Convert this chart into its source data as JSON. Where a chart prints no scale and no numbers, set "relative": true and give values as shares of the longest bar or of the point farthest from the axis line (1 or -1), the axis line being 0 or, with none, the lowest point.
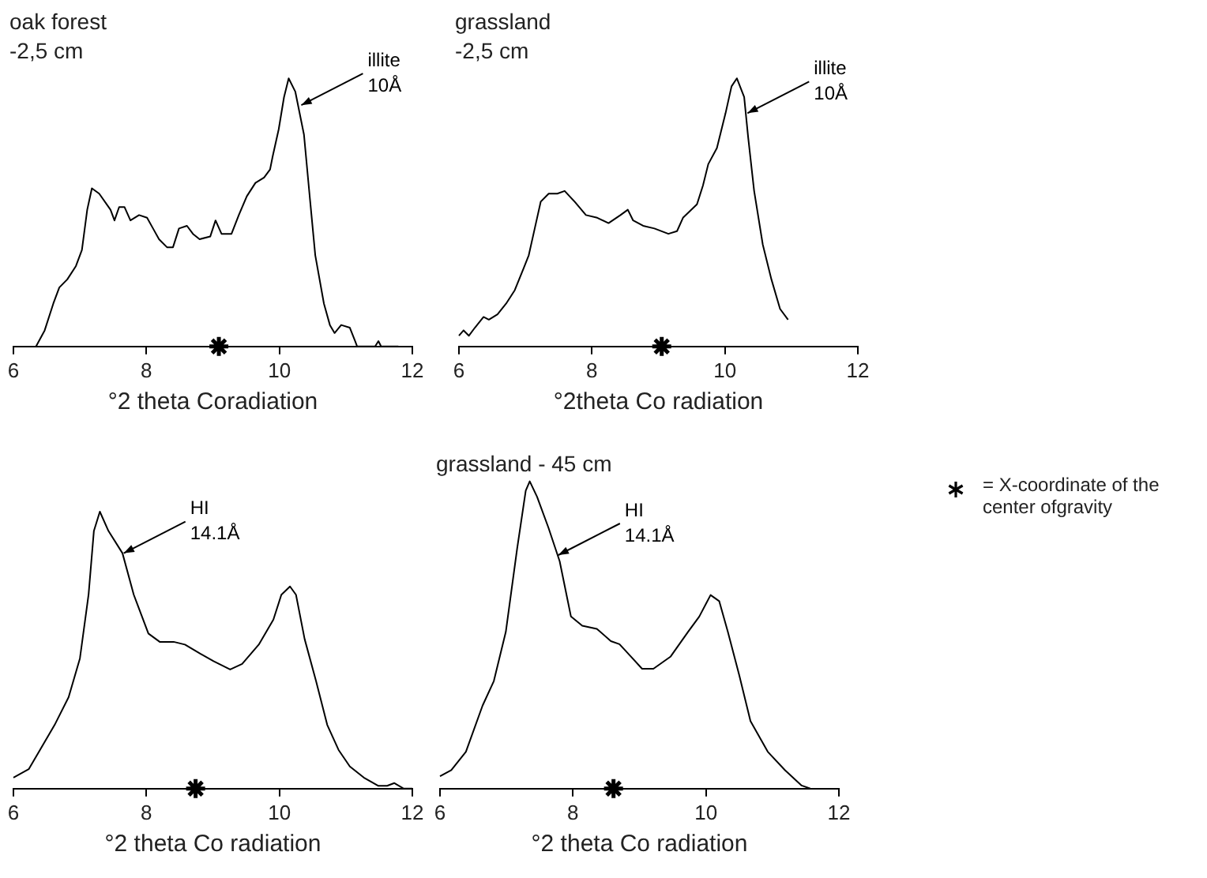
{
  "chart_data": [
    {
      "type": "line",
      "relative": true,
      "title": "oak forest",
      "subtitle": "-2,5 cm",
      "xlabel": "°2 theta Coradiation",
      "xlim": [
        6,
        12
      ],
      "xticks": [
        6,
        8,
        10,
        12
      ],
      "tick_labels": "x",
      "series": [
        {
          "color": "#000000",
          "x": [
            6.34,
            6.47,
            6.6,
            6.69,
            6.81,
            6.94,
            7.03,
            7.11,
            7.18,
            7.29,
            7.46,
            7.52,
            7.59,
            7.67,
            7.76,
            7.89,
            8.01,
            8.1,
            8.19,
            8.31,
            8.4,
            8.49,
            8.61,
            8.7,
            8.8,
            8.96,
            9.04,
            9.13,
            9.28,
            9.39,
            9.51,
            9.64,
            9.77,
            9.86,
            9.9,
            9.99,
            10.07,
            10.14,
            10.24,
            10.37,
            10.46,
            10.54,
            10.67,
            10.76,
            10.83,
            10.93,
            11.06,
            11.14,
            11.17,
            11.44,
            11.49,
            11.53,
            11.79
          ],
          "values": [
            0,
            0.06,
            0.16,
            0.22,
            0.25,
            0.3,
            0.36,
            0.51,
            0.59,
            0.57,
            0.51,
            0.47,
            0.52,
            0.52,
            0.47,
            0.49,
            0.48,
            0.44,
            0.4,
            0.37,
            0.37,
            0.44,
            0.45,
            0.42,
            0.4,
            0.41,
            0.47,
            0.42,
            0.42,
            0.49,
            0.56,
            0.61,
            0.63,
            0.66,
            0.71,
            0.81,
            0.93,
            1,
            0.95,
            0.79,
            0.55,
            0.34,
            0.16,
            0.08,
            0.05,
            0.08,
            0.07,
            0.02,
            0,
            0,
            0.02,
            0,
            0
          ]
        },
        {
          "type": "scatter",
          "marker": "cross",
          "color": "#000000",
          "x": [
            9.09
          ],
          "values": [
            0
          ]
        }
      ],
      "annotations": [
        {
          "text": "illite 10Å",
          "x": 10.33,
          "y": 0.9
        }
      ]
    },
    {
      "type": "line",
      "relative": true,
      "title": "grassland",
      "subtitle": "-2,5 cm",
      "xlabel": "°2theta Co radiation",
      "xlim": [
        6,
        12
      ],
      "xticks": [
        6,
        8,
        10,
        12
      ],
      "tick_labels": "x",
      "series": [
        {
          "color": "#000000",
          "x": [
            6.0,
            6.07,
            6.15,
            6.24,
            6.37,
            6.45,
            6.58,
            6.71,
            6.84,
            6.97,
            7.05,
            7.14,
            7.23,
            7.35,
            7.48,
            7.59,
            7.74,
            7.91,
            8.08,
            8.25,
            8.43,
            8.54,
            8.62,
            8.77,
            8.94,
            9.15,
            9.28,
            9.37,
            9.58,
            9.67,
            9.75,
            9.88,
            10.01,
            10.1,
            10.18,
            10.29,
            10.35,
            10.44,
            10.57,
            10.7,
            10.83,
            10.95
          ],
          "values": [
            0.04,
            0.06,
            0.04,
            0.07,
            0.11,
            0.1,
            0.12,
            0.16,
            0.21,
            0.29,
            0.34,
            0.44,
            0.54,
            0.57,
            0.57,
            0.58,
            0.54,
            0.49,
            0.48,
            0.46,
            0.49,
            0.51,
            0.47,
            0.45,
            0.44,
            0.42,
            0.43,
            0.48,
            0.53,
            0.6,
            0.68,
            0.74,
            0.87,
            0.97,
            1,
            0.93,
            0.78,
            0.58,
            0.38,
            0.25,
            0.14,
            0.1
          ]
        },
        {
          "type": "scatter",
          "marker": "cross",
          "color": "#000000",
          "x": [
            9.05
          ],
          "values": [
            0
          ]
        }
      ],
      "annotations": [
        {
          "text": "illite 10Å",
          "x": 10.34,
          "y": 0.87
        }
      ]
    },
    {
      "type": "line",
      "relative": true,
      "xlabel": "°2 theta Co radiation",
      "xlim": [
        6,
        12
      ],
      "xticks": [
        6,
        8,
        10,
        12
      ],
      "tick_labels": "x",
      "series": [
        {
          "color": "#000000",
          "x": [
            6.0,
            6.23,
            6.4,
            6.62,
            6.83,
            7.0,
            7.13,
            7.21,
            7.3,
            7.43,
            7.64,
            7.81,
            8.03,
            8.2,
            8.41,
            8.58,
            8.79,
            9.01,
            9.26,
            9.44,
            9.69,
            9.91,
            10.03,
            10.16,
            10.25,
            10.38,
            10.55,
            10.72,
            10.89,
            11.06,
            11.27,
            11.49,
            11.62,
            11.73,
            11.87,
            12.0
          ],
          "values": [
            0.04,
            0.07,
            0.14,
            0.23,
            0.33,
            0.47,
            0.7,
            0.93,
            1,
            0.93,
            0.85,
            0.7,
            0.56,
            0.53,
            0.53,
            0.52,
            0.49,
            0.46,
            0.43,
            0.45,
            0.52,
            0.61,
            0.7,
            0.73,
            0.7,
            0.54,
            0.39,
            0.23,
            0.14,
            0.08,
            0.04,
            0.01,
            0.01,
            0.02,
            0,
            0
          ]
        },
        {
          "type": "scatter",
          "marker": "cross",
          "color": "#000000",
          "x": [
            8.74
          ],
          "values": [
            0
          ]
        }
      ],
      "annotations": [
        {
          "text": "HI 14.1Å",
          "x": 7.66,
          "y": 0.85
        }
      ]
    },
    {
      "type": "line",
      "relative": true,
      "title": "grassland - 45 cm",
      "xlabel": "°2 theta Co radiation",
      "xlim": [
        6,
        12
      ],
      "xticks": [
        6,
        8,
        10,
        12
      ],
      "tick_labels": "x",
      "series": [
        {
          "color": "#000000",
          "x": [
            6.0,
            6.17,
            6.39,
            6.64,
            6.81,
            6.99,
            7.16,
            7.29,
            7.35,
            7.46,
            7.63,
            7.8,
            7.97,
            8.14,
            8.36,
            8.57,
            8.7,
            8.87,
            9.04,
            9.21,
            9.47,
            9.73,
            9.9,
            10.07,
            10.2,
            10.33,
            10.5,
            10.67,
            10.93,
            11.19,
            11.44,
            11.57
          ],
          "values": [
            0.04,
            0.06,
            0.12,
            0.27,
            0.35,
            0.51,
            0.78,
            0.97,
            1,
            0.95,
            0.85,
            0.74,
            0.56,
            0.53,
            0.52,
            0.48,
            0.47,
            0.43,
            0.39,
            0.39,
            0.43,
            0.51,
            0.56,
            0.63,
            0.61,
            0.51,
            0.37,
            0.22,
            0.12,
            0.06,
            0.01,
            0
          ]
        },
        {
          "type": "scatter",
          "marker": "cross",
          "color": "#000000",
          "x": [
            8.61
          ],
          "values": [
            0
          ]
        }
      ],
      "annotations": [
        {
          "text": "HI 14.1Å",
          "x": 7.78,
          "y": 0.76
        }
      ]
    },
    {
      "type": "other",
      "annotations": [
        "= X-coordinate of the center ofgravity"
      ]
    }
  ]
}
